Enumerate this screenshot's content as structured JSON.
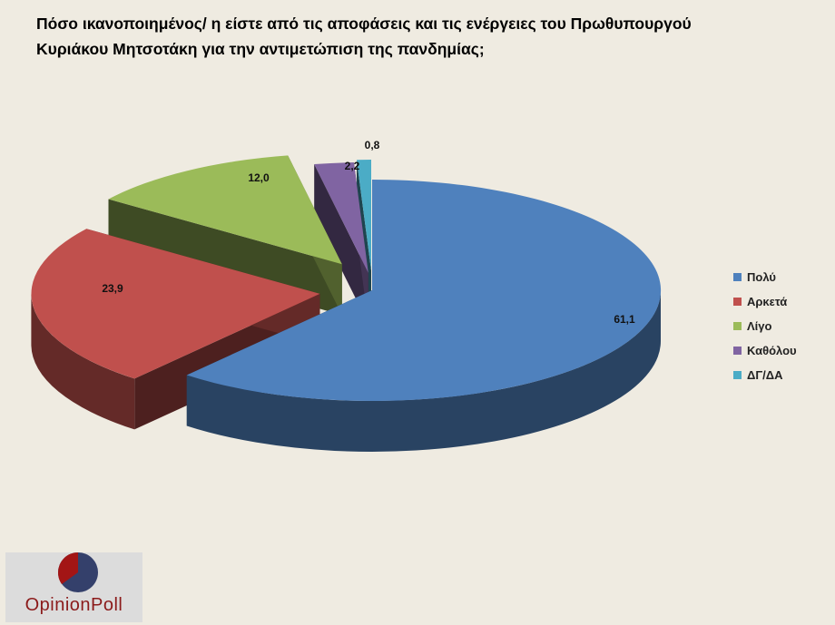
{
  "title": {
    "line1": "Πόσο ικανοποιημένος/ η είστε από τις αποφάσεις και τις ενέργειες του Πρωθυπουργού",
    "line2": "Κυριάκου Μητσοτάκη  για την αντιμετώπιση της πανδημίας;"
  },
  "chart_data": {
    "type": "pie",
    "title": "Πόσο ικανοποιημένος/ η είστε από τις αποφάσεις και τις ενέργειες του Πρωθυπουργού Κυριάκου Μητσοτάκη  για την αντιμετώπιση της πανδημίας;",
    "categories": [
      "Πολύ",
      "Αρκετά",
      "Λίγο",
      "Καθόλου",
      "ΔΓ/ΔΑ"
    ],
    "values": [
      61.1,
      23.9,
      12.0,
      2.2,
      0.8
    ],
    "labels": [
      "61,1",
      "23,9",
      "12,0",
      "2,2",
      "0,8"
    ],
    "colors": [
      "#4f81bd",
      "#c0504d",
      "#9bbb59",
      "#8064a2",
      "#4bacc6"
    ],
    "style": "3d-exploded",
    "legend_position": "right"
  },
  "logo": {
    "text": "OpinionPoll"
  }
}
